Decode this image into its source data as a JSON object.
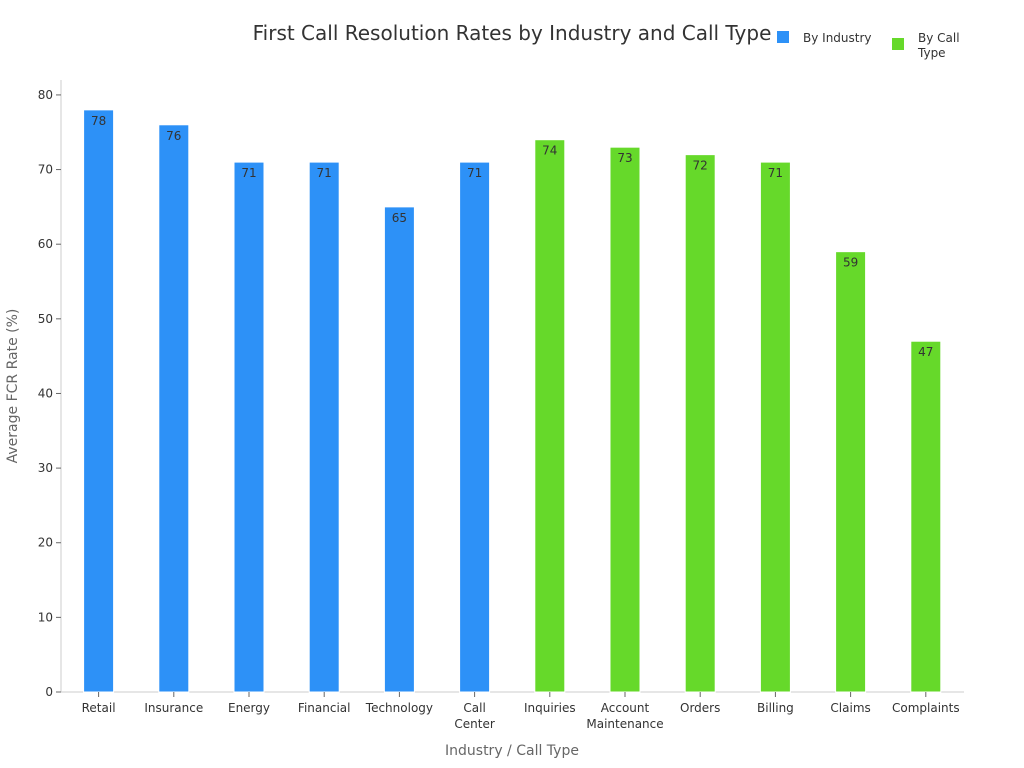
{
  "chart_data": {
    "type": "bar",
    "title": "First Call Resolution Rates by Industry and Call Type",
    "xlabel": "Industry / Call Type",
    "ylabel": "Average FCR Rate (%)",
    "ylim": [
      0,
      82
    ],
    "yticks": [
      0,
      10,
      20,
      30,
      40,
      50,
      60,
      70,
      80
    ],
    "grid": false,
    "legend_position": "top-right",
    "categories": [
      [
        "Retail"
      ],
      [
        "Insurance"
      ],
      [
        "Energy"
      ],
      [
        "Financial"
      ],
      [
        "Technology"
      ],
      [
        "Call",
        "Center"
      ],
      [
        "Inquiries"
      ],
      [
        "Account",
        "Maintenance"
      ],
      [
        "Orders"
      ],
      [
        "Billing"
      ],
      [
        "Claims"
      ],
      [
        "Complaints"
      ]
    ],
    "series": [
      {
        "name": [
          "By Industry"
        ],
        "color": "#2d91f7",
        "values": [
          78,
          76,
          71,
          71,
          65,
          71,
          null,
          null,
          null,
          null,
          null,
          null
        ]
      },
      {
        "name": [
          "By Call",
          "Type"
        ],
        "color": "#66d92a",
        "values": [
          null,
          null,
          null,
          null,
          null,
          null,
          74,
          73,
          72,
          71,
          59,
          47
        ]
      }
    ]
  }
}
